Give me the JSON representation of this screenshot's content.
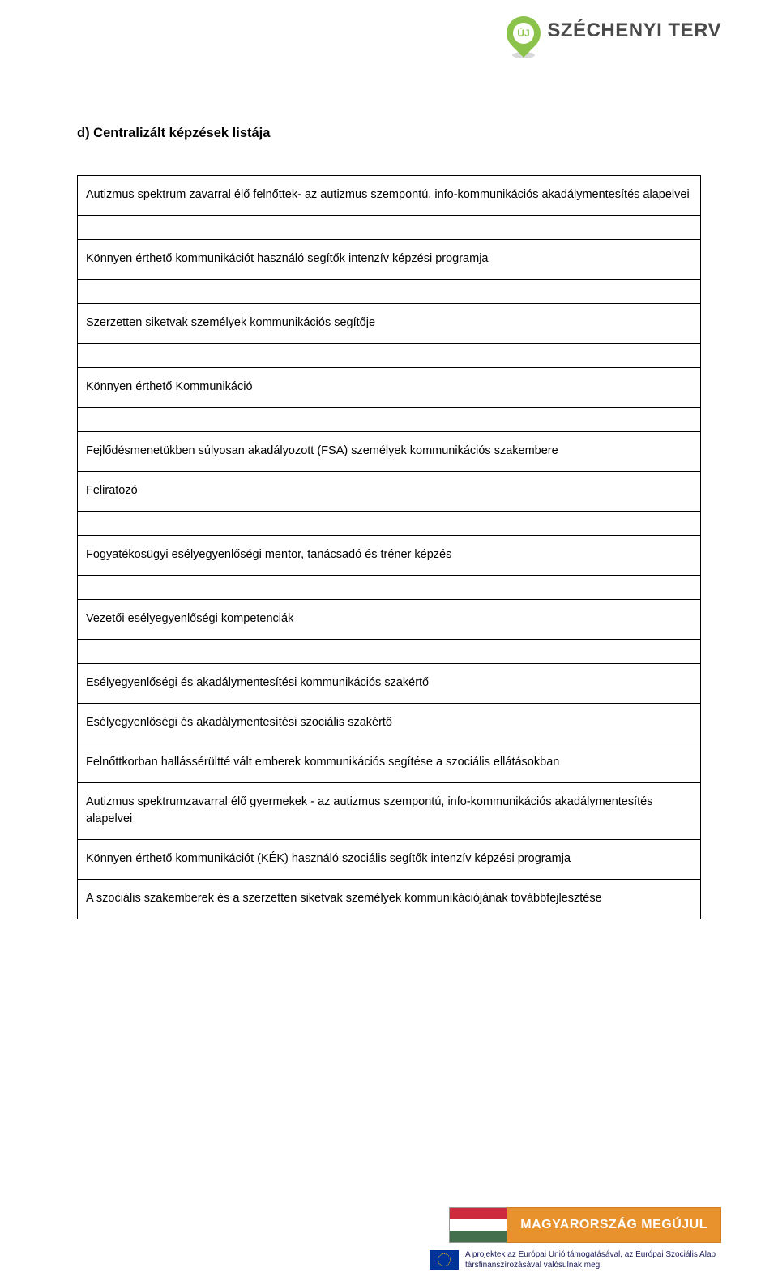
{
  "header": {
    "pin_label": "ÚJ",
    "brand_text": "SZÉCHENYI TERV",
    "pin_color": "#8bc34a",
    "brand_text_color": "#4a4a4a"
  },
  "document": {
    "title": "d) Centralizált képzések listája",
    "rows": [
      {
        "gap_before": false,
        "text": "Autizmus spektrum zavarral élő felnőttek- az autizmus szempontú, info-kommunikációs akadálymentesítés alapelvei"
      },
      {
        "gap_before": true,
        "text": "Könnyen érthető kommunikációt használó segítők intenzív képzési programja"
      },
      {
        "gap_before": true,
        "text": "Szerzetten siketvak személyek kommunikációs segítője"
      },
      {
        "gap_before": true,
        "text": "Könnyen érthető Kommunikáció"
      },
      {
        "gap_before": true,
        "text": "Fejlődésmenetükben súlyosan akadályozott (FSA) személyek kommunikációs szakembere"
      },
      {
        "gap_before": false,
        "text": "Feliratozó"
      },
      {
        "gap_before": true,
        "text": "Fogyatékosügyi esélyegyenlőségi mentor, tanácsadó és tréner képzés"
      },
      {
        "gap_before": true,
        "text": "Vezetői esélyegyenlőségi kompetenciák"
      },
      {
        "gap_before": true,
        "text": "Esélyegyenlőségi és akadálymentesítési kommunikációs szakértő"
      },
      {
        "gap_before": false,
        "text": "Esélyegyenlőségi és akadálymentesítési szociális szakértő"
      },
      {
        "gap_before": false,
        "text": "Felnőttkorban hallássérültté vált emberek kommunikációs segítése a szociális ellátásokban"
      },
      {
        "gap_before": false,
        "text": "Autizmus spektrumzavarral élő gyermekek - az autizmus szempontú, info-kommunikációs akadálymentesítés alapelvei"
      },
      {
        "gap_before": false,
        "text": "Könnyen érthető kommunikációt (KÉK) használó szociális segítők intenzív képzési programja"
      },
      {
        "gap_before": false,
        "text": "A szociális szakemberek és a szerzetten siketvak személyek kommunikációjának továbbfejlesztése"
      }
    ]
  },
  "footer": {
    "bar_text": "MAGYARORSZÁG MEGÚJUL",
    "bar_color": "#e8922e",
    "note_text": "A projektek az Európai Unió támogatásával, az Európai Szociális Alap társfinanszírozásával valósulnak meg.",
    "flag_colors": {
      "r": "#cd2a3e",
      "w": "#ffffff",
      "g": "#436f4d"
    },
    "eu_flag_bg": "#003399",
    "eu_star_color": "#ffcc00"
  }
}
